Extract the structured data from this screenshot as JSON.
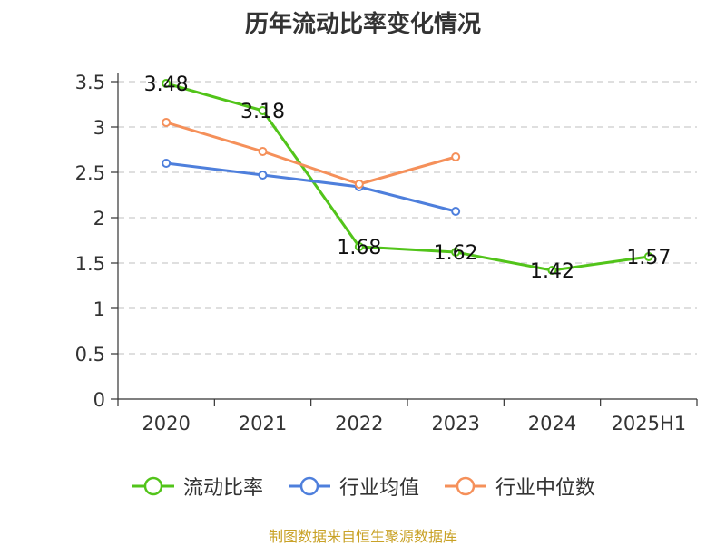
{
  "chart_data": {
    "type": "line",
    "title": "历年流动比率变化情况",
    "categories": [
      "2020",
      "2021",
      "2022",
      "2023",
      "2024",
      "2025H1"
    ],
    "ylim": [
      0,
      3.5
    ],
    "yticks": [
      "0",
      "0.5",
      "1",
      "1.5",
      "2",
      "2.5",
      "3",
      "3.5"
    ],
    "grid": true,
    "legend_position": "bottom",
    "series": [
      {
        "name": "流动比率",
        "color": "#52c41a",
        "values": [
          3.48,
          3.18,
          1.68,
          1.62,
          1.42,
          1.57
        ],
        "labels": [
          "3.48",
          "3.18",
          "1.68",
          "1.62",
          "1.42",
          "1.57"
        ]
      },
      {
        "name": "行业均值",
        "color": "#4e7fdc",
        "values": [
          2.6,
          2.47,
          2.34,
          2.07,
          null,
          null
        ]
      },
      {
        "name": "行业中位数",
        "color": "#f5905a",
        "values": [
          3.05,
          2.73,
          2.37,
          2.67,
          null,
          null
        ]
      }
    ]
  },
  "source_text": "制图数据来自恒生聚源数据库"
}
